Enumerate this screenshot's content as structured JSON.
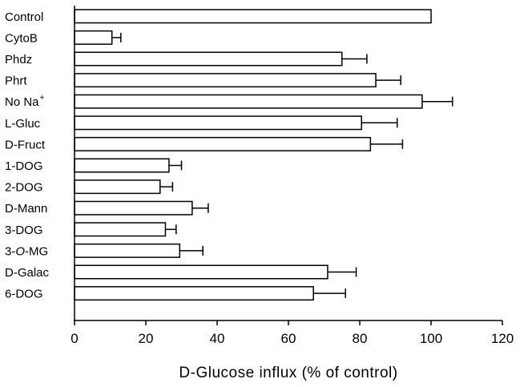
{
  "chart_data": {
    "type": "bar",
    "orientation": "horizontal",
    "title": "",
    "xlabel": "D-Glucose influx (% of control)",
    "ylabel": "",
    "xlim": [
      0,
      120
    ],
    "xticks": [
      "0",
      "20",
      "40",
      "60",
      "80",
      "100",
      "120"
    ],
    "grid": false,
    "legend": "none",
    "bar_color": "#ffffff",
    "edge_color": "#000000",
    "categories": [
      {
        "label": "Control"
      },
      {
        "label": "CytoB"
      },
      {
        "label": "Phdz"
      },
      {
        "label": "Phrt"
      },
      {
        "label": "No Na",
        "sup": "+"
      },
      {
        "label": "L-Gluc"
      },
      {
        "label": "D-Fruct"
      },
      {
        "label": "1-DOG"
      },
      {
        "label": "2-DOG"
      },
      {
        "label": "D-Mann"
      },
      {
        "label": "3-DOG"
      },
      {
        "label": "3-",
        "italic": "O",
        "suffix": "-MG"
      },
      {
        "label": "D-Galac"
      },
      {
        "label": "6-DOG"
      }
    ],
    "values": [
      100,
      10.5,
      75,
      84.5,
      97.5,
      80.5,
      83,
      26.5,
      24,
      33,
      25.5,
      29.5,
      71,
      67
    ],
    "errors": [
      0,
      2.5,
      7,
      7,
      8.5,
      10,
      9,
      3.5,
      3.5,
      4.5,
      3,
      6.5,
      8,
      9
    ]
  }
}
